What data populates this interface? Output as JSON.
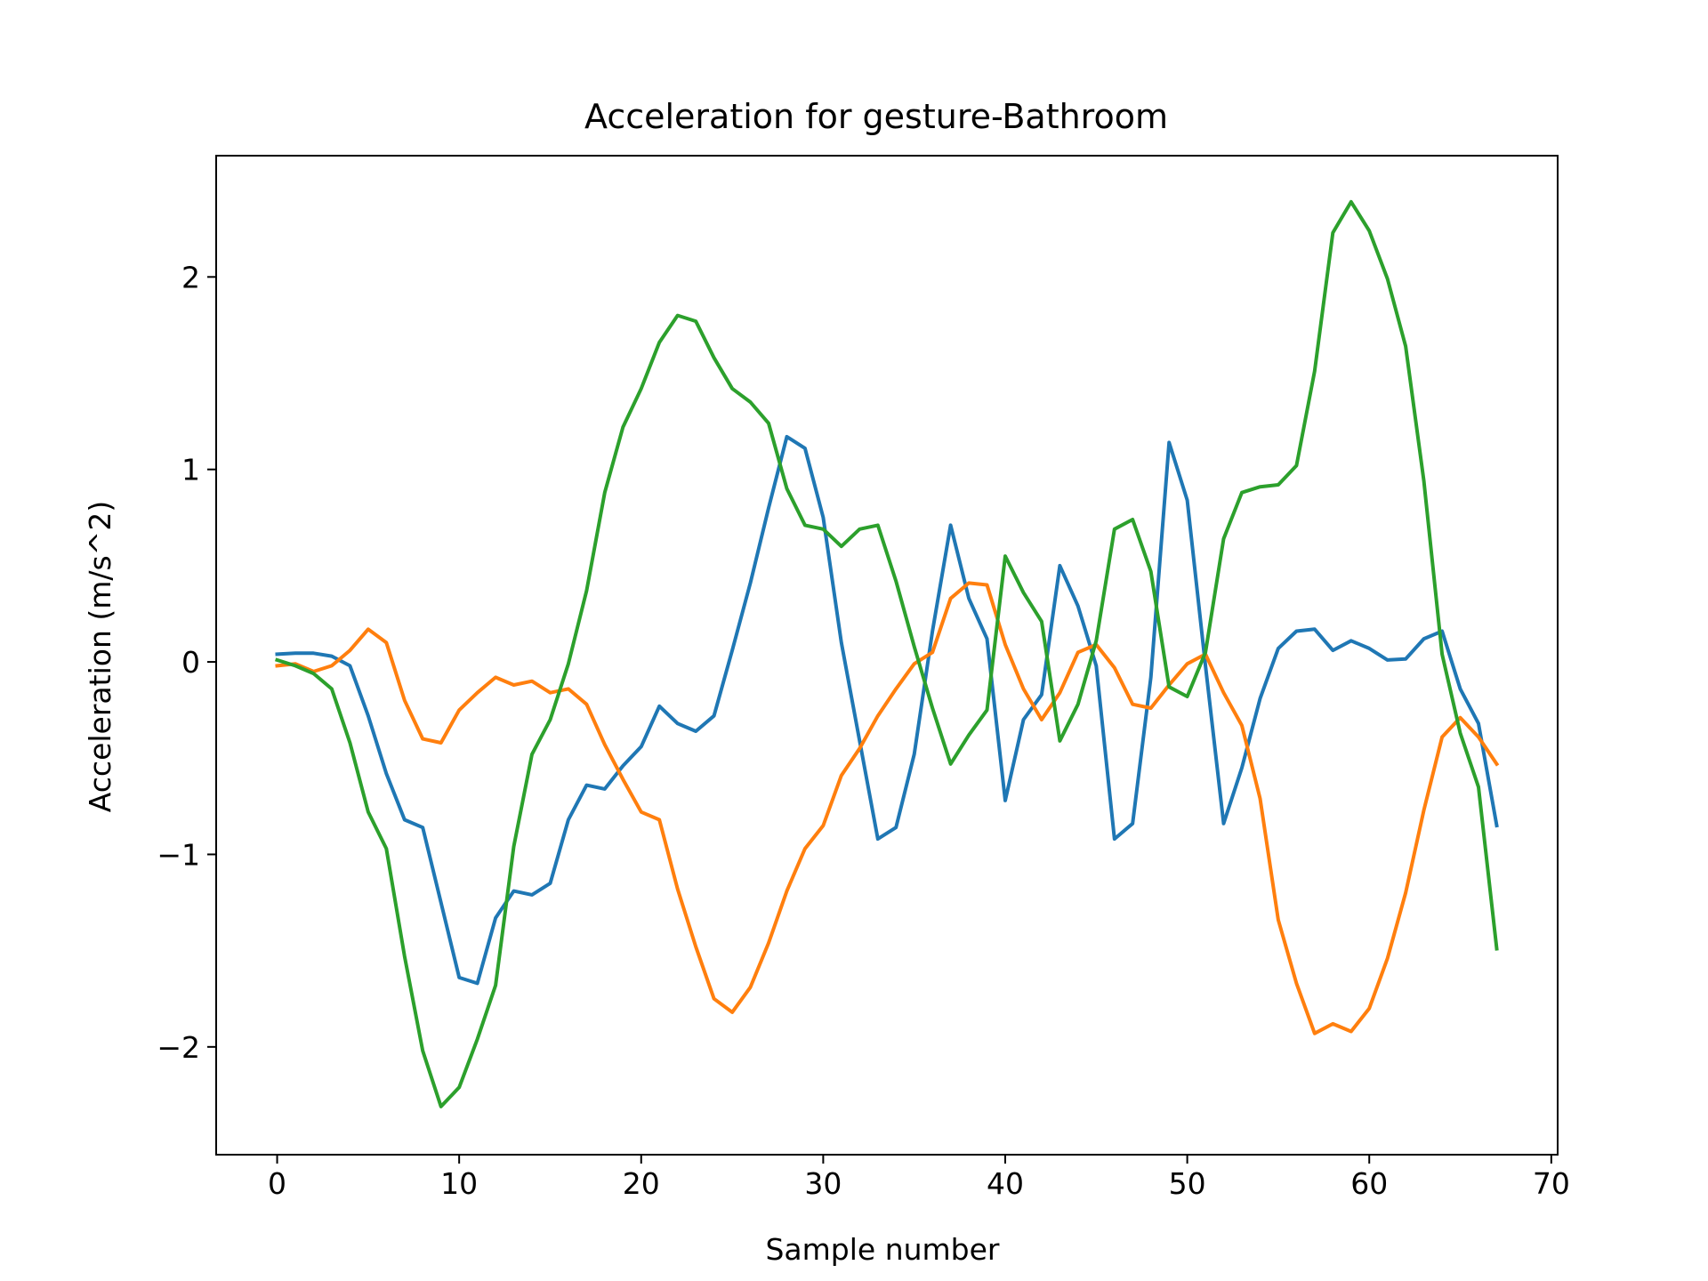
{
  "chart_data": {
    "type": "line",
    "title": "Acceleration for gesture-Bathroom",
    "xlabel": "Sample number",
    "ylabel": "Acceleration (m/s^2)",
    "xlim": [
      -3.35,
      70.35
    ],
    "ylim": [
      -2.56,
      2.63
    ],
    "xticks": [
      0,
      10,
      20,
      30,
      40,
      50,
      60,
      70
    ],
    "xtick_labels": [
      "0",
      "10",
      "20",
      "30",
      "40",
      "50",
      "60",
      "70"
    ],
    "yticks": [
      -2,
      -1,
      0,
      1,
      2
    ],
    "ytick_labels": [
      "−2",
      "−1",
      "0",
      "1",
      "2"
    ],
    "grid": false,
    "legend": "none",
    "x": [
      0,
      1,
      2,
      3,
      4,
      5,
      6,
      7,
      8,
      9,
      10,
      11,
      12,
      13,
      14,
      15,
      16,
      17,
      18,
      19,
      20,
      21,
      22,
      23,
      24,
      25,
      26,
      27,
      28,
      29,
      30,
      31,
      32,
      33,
      34,
      35,
      36,
      37,
      38,
      39,
      40,
      41,
      42,
      43,
      44,
      45,
      46,
      47,
      48,
      49,
      50,
      51,
      52,
      53,
      54,
      55,
      56,
      57,
      58,
      59,
      60,
      61,
      62,
      63,
      64,
      65,
      66,
      67
    ],
    "series": [
      {
        "color": "#1f77b4",
        "values": [
          0.04,
          0.045,
          0.045,
          0.03,
          -0.02,
          -0.28,
          -0.58,
          -0.82,
          -0.86,
          -1.25,
          -1.64,
          -1.67,
          -1.33,
          -1.19,
          -1.21,
          -1.15,
          -0.82,
          -0.64,
          -0.66,
          -0.54,
          -0.44,
          -0.23,
          -0.32,
          -0.36,
          -0.28,
          0.06,
          0.41,
          0.8,
          1.17,
          1.11,
          0.75,
          0.1,
          -0.41,
          -0.92,
          -0.86,
          -0.48,
          0.16,
          0.71,
          0.33,
          0.12,
          -0.72,
          -0.3,
          -0.17,
          0.5,
          0.29,
          -0.02,
          -0.92,
          -0.84,
          -0.08,
          1.14,
          0.84,
          -0.02,
          -0.84,
          -0.55,
          -0.19,
          0.07,
          0.16,
          0.17,
          0.06,
          0.11,
          0.07,
          0.01,
          0.015,
          0.12,
          0.16,
          -0.14,
          -0.32,
          -0.85
        ]
      },
      {
        "color": "#ff7f0e",
        "values": [
          -0.02,
          -0.01,
          -0.05,
          -0.02,
          0.06,
          0.17,
          0.1,
          -0.2,
          -0.4,
          -0.42,
          -0.25,
          -0.16,
          -0.08,
          -0.12,
          -0.1,
          -0.16,
          -0.14,
          -0.22,
          -0.43,
          -0.61,
          -0.78,
          -0.82,
          -1.18,
          -1.48,
          -1.75,
          -1.82,
          -1.69,
          -1.46,
          -1.19,
          -0.97,
          -0.85,
          -0.59,
          -0.45,
          -0.28,
          -0.14,
          -0.01,
          0.05,
          0.33,
          0.41,
          0.4,
          0.09,
          -0.14,
          -0.3,
          -0.16,
          0.05,
          0.09,
          -0.03,
          -0.22,
          -0.24,
          -0.12,
          -0.01,
          0.04,
          -0.16,
          -0.33,
          -0.71,
          -1.34,
          -1.67,
          -1.93,
          -1.88,
          -1.92,
          -1.8,
          -1.54,
          -1.2,
          -0.77,
          -0.39,
          -0.29,
          -0.39,
          -0.53
        ]
      },
      {
        "color": "#2ca02c",
        "values": [
          0.01,
          -0.02,
          -0.06,
          -0.14,
          -0.42,
          -0.78,
          -0.97,
          -1.53,
          -2.02,
          -2.31,
          -2.21,
          -1.96,
          -1.68,
          -0.96,
          -0.48,
          -0.3,
          -0.01,
          0.37,
          0.88,
          1.22,
          1.42,
          1.66,
          1.8,
          1.77,
          1.58,
          1.42,
          1.35,
          1.24,
          0.9,
          0.71,
          0.69,
          0.6,
          0.69,
          0.71,
          0.42,
          0.08,
          -0.24,
          -0.53,
          -0.38,
          -0.25,
          0.55,
          0.36,
          0.21,
          -0.41,
          -0.22,
          0.11,
          0.69,
          0.74,
          0.47,
          -0.13,
          -0.18,
          0.05,
          0.64,
          0.88,
          0.91,
          0.92,
          1.02,
          1.51,
          2.23,
          2.39,
          2.24,
          1.99,
          1.64,
          0.94,
          0.04,
          -0.37,
          -0.65,
          -1.49
        ]
      }
    ]
  }
}
